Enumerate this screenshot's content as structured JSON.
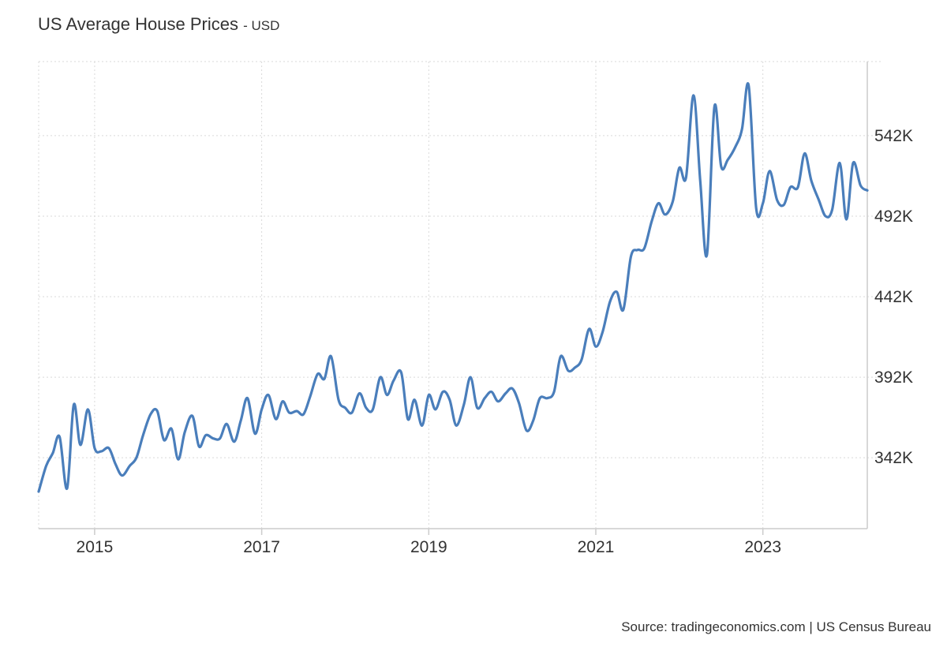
{
  "title": "US Average House Prices",
  "unit_label": "- USD",
  "source": "Source: tradingeconomics.com | US Census Bureau",
  "colors": {
    "line": "#4a7ebb",
    "grid": "#d9d9d9",
    "axis": "#cccccc",
    "text": "#333333"
  },
  "chart_data": {
    "type": "line",
    "title": "US Average House Prices",
    "unit": "USD",
    "grid": true,
    "y_axis_position": "right",
    "xlim": [
      2014.33,
      2024.25
    ],
    "ylim": [
      298000,
      588000
    ],
    "x_ticks": [
      {
        "value": 2015,
        "label": "2015"
      },
      {
        "value": 2017,
        "label": "2017"
      },
      {
        "value": 2019,
        "label": "2019"
      },
      {
        "value": 2021,
        "label": "2021"
      },
      {
        "value": 2023,
        "label": "2023"
      }
    ],
    "y_ticks": [
      {
        "value": 342000,
        "label": "342K"
      },
      {
        "value": 392000,
        "label": "392K"
      },
      {
        "value": 442000,
        "label": "442K"
      },
      {
        "value": 492000,
        "label": "492K"
      },
      {
        "value": 542000,
        "label": "542K"
      }
    ],
    "series": [
      {
        "x": [
          2014.33,
          2014.42,
          2014.5,
          2014.58,
          2014.67,
          2014.75,
          2014.83,
          2014.92,
          2015.0,
          2015.08,
          2015.17,
          2015.25,
          2015.33,
          2015.42,
          2015.5,
          2015.58,
          2015.67,
          2015.75,
          2015.83,
          2015.92,
          2016.0,
          2016.08,
          2016.17,
          2016.25,
          2016.33,
          2016.42,
          2016.5,
          2016.58,
          2016.67,
          2016.75,
          2016.83,
          2016.92,
          2017.0,
          2017.08,
          2017.17,
          2017.25,
          2017.33,
          2017.42,
          2017.5,
          2017.58,
          2017.67,
          2017.75,
          2017.83,
          2017.92,
          2018.0,
          2018.08,
          2018.17,
          2018.25,
          2018.33,
          2018.42,
          2018.5,
          2018.58,
          2018.67,
          2018.75,
          2018.83,
          2018.92,
          2019.0,
          2019.08,
          2019.17,
          2019.25,
          2019.33,
          2019.42,
          2019.5,
          2019.58,
          2019.67,
          2019.75,
          2019.83,
          2019.92,
          2020.0,
          2020.08,
          2020.17,
          2020.25,
          2020.33,
          2020.42,
          2020.5,
          2020.58,
          2020.67,
          2020.75,
          2020.83,
          2020.92,
          2021.0,
          2021.08,
          2021.17,
          2021.25,
          2021.33,
          2021.42,
          2021.5,
          2021.58,
          2021.67,
          2021.75,
          2021.83,
          2021.92,
          2022.0,
          2022.08,
          2022.17,
          2022.25,
          2022.33,
          2022.42,
          2022.5,
          2022.58,
          2022.67,
          2022.75,
          2022.83,
          2022.92,
          2023.0,
          2023.08,
          2023.17,
          2023.25,
          2023.33,
          2023.42,
          2023.5,
          2023.58,
          2023.67,
          2023.75,
          2023.83,
          2023.92,
          2024.0,
          2024.08,
          2024.17,
          2024.25
        ],
        "y": [
          321000,
          337000,
          345000,
          355000,
          323000,
          375000,
          350000,
          372000,
          348000,
          346000,
          348000,
          338000,
          331000,
          337000,
          342000,
          356000,
          369000,
          371000,
          353000,
          360000,
          341000,
          358000,
          368000,
          349000,
          356000,
          354000,
          354000,
          363000,
          352000,
          365000,
          379000,
          357000,
          372000,
          381000,
          366000,
          377000,
          370000,
          371000,
          369000,
          380000,
          394000,
          391000,
          405000,
          378000,
          373000,
          370000,
          382000,
          373000,
          372000,
          392000,
          381000,
          390000,
          395000,
          366000,
          378000,
          362000,
          381000,
          372000,
          383000,
          378000,
          362000,
          375000,
          392000,
          373000,
          379000,
          383000,
          377000,
          382000,
          385000,
          376000,
          359000,
          365000,
          379000,
          379000,
          383000,
          405000,
          396000,
          398000,
          403000,
          422000,
          411000,
          420000,
          439000,
          445000,
          434000,
          467000,
          471000,
          472000,
          489000,
          500000,
          493000,
          501000,
          522000,
          516000,
          567000,
          514000,
          468000,
          560000,
          523000,
          527000,
          535000,
          546000,
          573000,
          497000,
          500000,
          520000,
          502000,
          499000,
          510000,
          510000,
          531000,
          514000,
          502000,
          492000,
          496000,
          525000,
          490000,
          525000,
          511000,
          508000
        ]
      }
    ]
  }
}
